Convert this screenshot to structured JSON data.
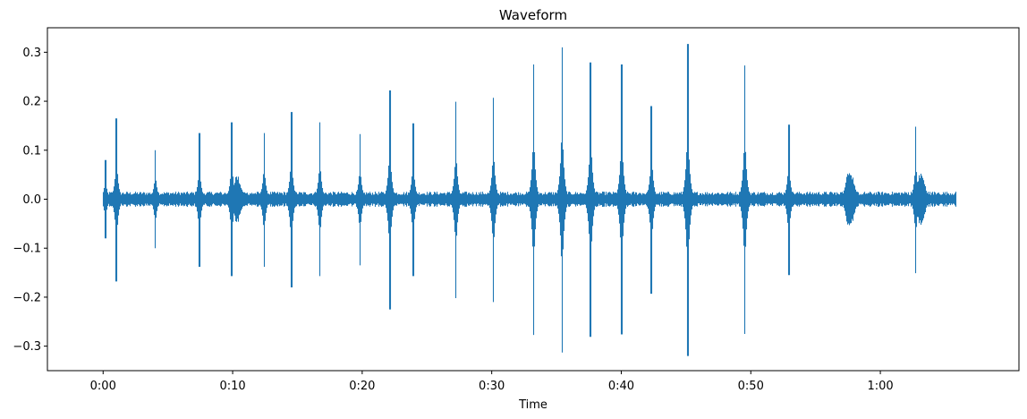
{
  "chart_data": {
    "type": "line",
    "title": "Waveform",
    "xlabel": "Time",
    "ylabel": "",
    "x_unit": "seconds",
    "xlim": [
      -4.3,
      70.7
    ],
    "ylim": [
      -0.35,
      0.35
    ],
    "x_ticks": [
      {
        "value": 0,
        "label": "0:00"
      },
      {
        "value": 10,
        "label": "0:10"
      },
      {
        "value": 20,
        "label": "0:20"
      },
      {
        "value": 30,
        "label": "0:30"
      },
      {
        "value": 40,
        "label": "0:40"
      },
      {
        "value": 50,
        "label": "0:50"
      },
      {
        "value": 60,
        "label": "1:00"
      }
    ],
    "y_ticks": [
      {
        "value": 0.3,
        "label": "0.3"
      },
      {
        "value": 0.2,
        "label": "0.2"
      },
      {
        "value": 0.1,
        "label": "0.1"
      },
      {
        "value": 0.0,
        "label": "0.0"
      },
      {
        "value": -0.1,
        "label": "−0.1"
      },
      {
        "value": -0.2,
        "label": "−0.2"
      },
      {
        "value": -0.3,
        "label": "−0.3"
      }
    ],
    "grid": false,
    "line_color": "#1f77b4",
    "signal_start": 0.0,
    "signal_end": 65.8,
    "noise_floor": 0.012,
    "series": [
      {
        "peaks": [
          {
            "t": 0.15,
            "max": 0.08,
            "min": -0.08
          },
          {
            "t": 1.0,
            "max": 0.165,
            "min": -0.168
          },
          {
            "t": 4.0,
            "max": 0.1,
            "min": -0.1
          },
          {
            "t": 7.4,
            "max": 0.135,
            "min": -0.138
          },
          {
            "t": 9.9,
            "max": 0.157,
            "min": -0.157
          },
          {
            "t": 12.4,
            "max": 0.135,
            "min": -0.138
          },
          {
            "t": 14.5,
            "max": 0.178,
            "min": -0.18
          },
          {
            "t": 16.7,
            "max": 0.157,
            "min": -0.157
          },
          {
            "t": 19.8,
            "max": 0.133,
            "min": -0.135
          },
          {
            "t": 22.1,
            "max": 0.222,
            "min": -0.225
          },
          {
            "t": 23.9,
            "max": 0.155,
            "min": -0.157
          },
          {
            "t": 27.2,
            "max": 0.199,
            "min": -0.202
          },
          {
            "t": 30.1,
            "max": 0.207,
            "min": -0.21
          },
          {
            "t": 33.2,
            "max": 0.275,
            "min": -0.277
          },
          {
            "t": 35.4,
            "max": 0.31,
            "min": -0.313
          },
          {
            "t": 37.6,
            "max": 0.279,
            "min": -0.281
          },
          {
            "t": 40.0,
            "max": 0.275,
            "min": -0.276
          },
          {
            "t": 42.3,
            "max": 0.19,
            "min": -0.193
          },
          {
            "t": 45.1,
            "max": 0.317,
            "min": -0.32
          },
          {
            "t": 49.5,
            "max": 0.273,
            "min": -0.275
          },
          {
            "t": 52.9,
            "max": 0.152,
            "min": -0.155
          },
          {
            "t": 62.7,
            "max": 0.148,
            "min": -0.151
          }
        ],
        "bursts": [
          {
            "t": 10.3,
            "amp": 0.05
          },
          {
            "t": 57.6,
            "amp": 0.065
          },
          {
            "t": 63.1,
            "amp": 0.055
          }
        ]
      }
    ]
  }
}
